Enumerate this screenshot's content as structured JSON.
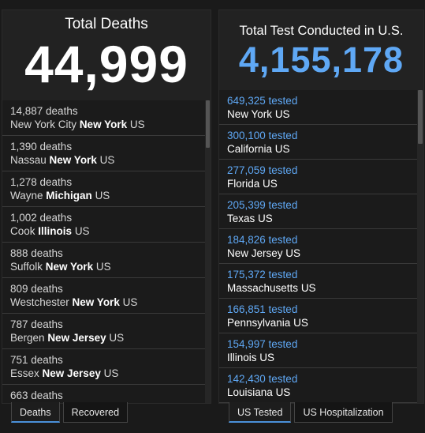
{
  "left": {
    "title": "Total Deaths",
    "value": "44,999",
    "items": [
      {
        "v1": "14,887 deaths",
        "place": "New York City",
        "state": "New York",
        "country": "US"
      },
      {
        "v1": "1,390 deaths",
        "place": "Nassau",
        "state": "New York",
        "country": "US"
      },
      {
        "v1": "1,278 deaths",
        "place": "Wayne",
        "state": "Michigan",
        "country": "US"
      },
      {
        "v1": "1,002 deaths",
        "place": "Cook",
        "state": "Illinois",
        "country": "US"
      },
      {
        "v1": "888 deaths",
        "place": "Suffolk",
        "state": "New York",
        "country": "US"
      },
      {
        "v1": "809 deaths",
        "place": "Westchester",
        "state": "New York",
        "country": "US"
      },
      {
        "v1": "787 deaths",
        "place": "Bergen",
        "state": "New Jersey",
        "country": "US"
      },
      {
        "v1": "751 deaths",
        "place": "Essex",
        "state": "New Jersey",
        "country": "US"
      },
      {
        "v1": "663 deaths",
        "place": "",
        "state": "",
        "country": ""
      }
    ],
    "tabs": [
      {
        "label": "Deaths",
        "active": true
      },
      {
        "label": "Recovered",
        "active": false
      }
    ]
  },
  "right": {
    "title": "Total Test Conducted in U.S.",
    "value": "4,155,178",
    "items": [
      {
        "v1": "649,325 tested",
        "place": "New York",
        "country": "US"
      },
      {
        "v1": "300,100 tested",
        "place": "California",
        "country": "US"
      },
      {
        "v1": "277,059 tested",
        "place": "Florida",
        "country": "US"
      },
      {
        "v1": "205,399 tested",
        "place": "Texas",
        "country": "US"
      },
      {
        "v1": "184,826 tested",
        "place": "New Jersey",
        "country": "US"
      },
      {
        "v1": "175,372 tested",
        "place": "Massachusetts",
        "country": "US"
      },
      {
        "v1": "166,851 tested",
        "place": "Pennsylvania",
        "country": "US"
      },
      {
        "v1": "154,997 tested",
        "place": "Illinois",
        "country": "US"
      },
      {
        "v1": "142,430 tested",
        "place": "Louisiana",
        "country": "US"
      }
    ],
    "tabs": [
      {
        "label": "US Tested",
        "active": true
      },
      {
        "label": "US Hospitalization",
        "active": false
      }
    ]
  },
  "colors": {
    "accent_blue": "#5fa8f5",
    "tab_active_underline": "#4a90d9",
    "background": "#1a1a1a"
  }
}
